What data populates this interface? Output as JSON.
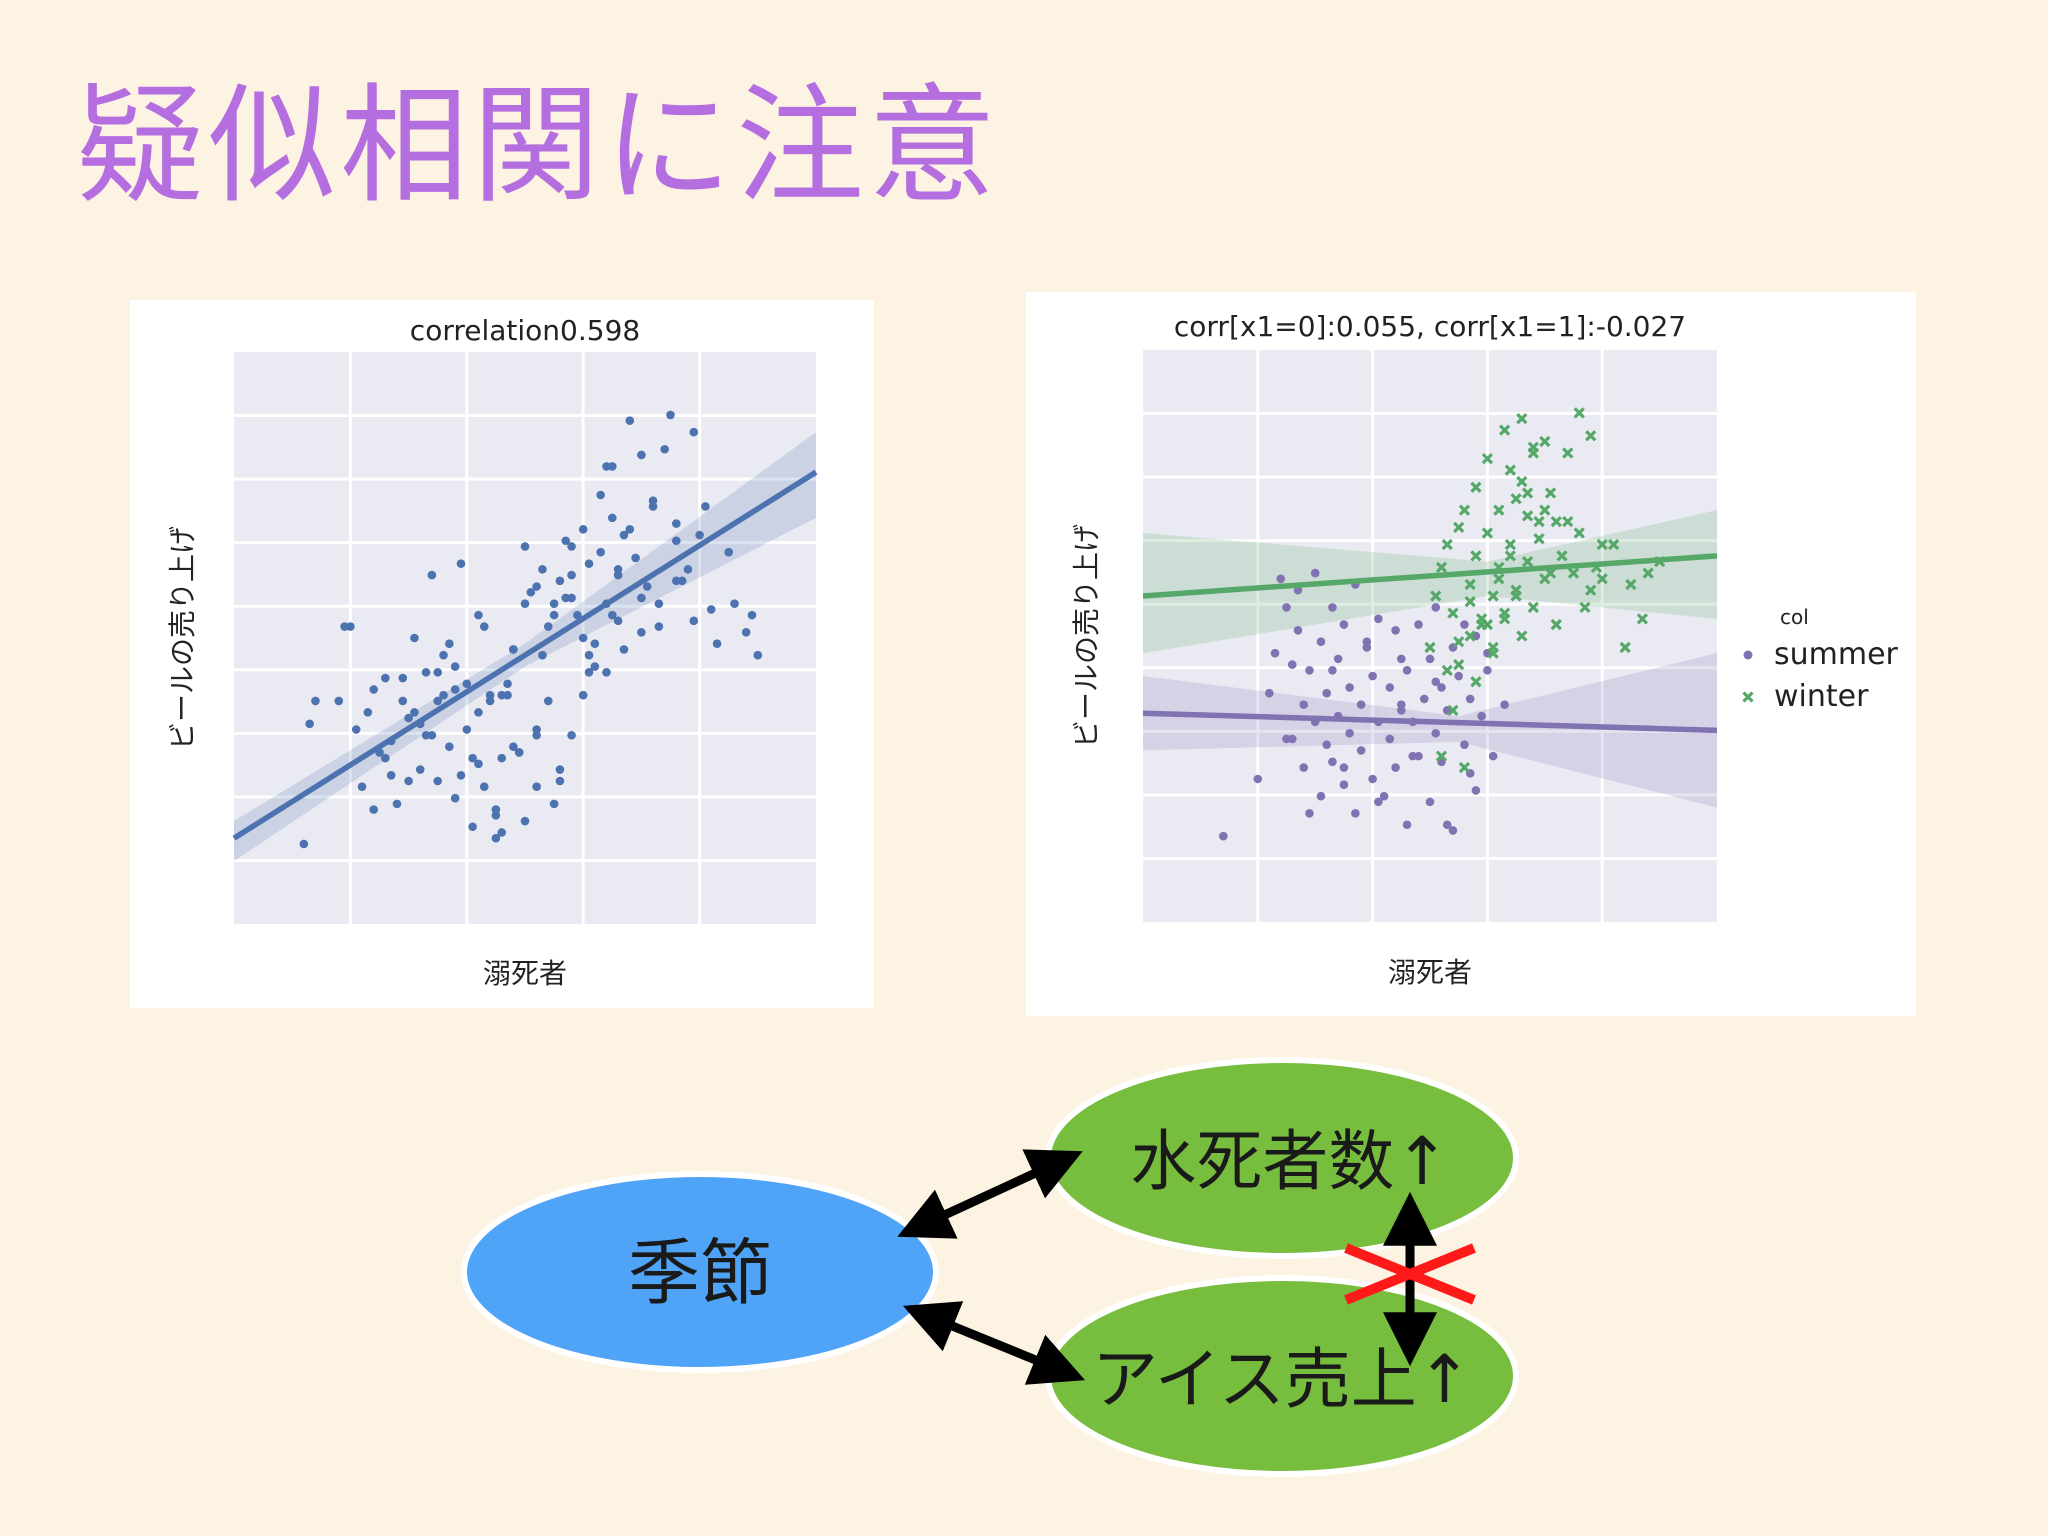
{
  "slide": {
    "title": "疑似相関に注意"
  },
  "colors": {
    "title": "#b56ee0",
    "background": "#fdf3e3",
    "plot_bg": "#eaeaf2",
    "series_blue": "#4c72b0",
    "series_summer": "#8172b2",
    "series_winter": "#55a868",
    "node_season": "#4fa4f7",
    "node_effect": "#77bd3e",
    "cross": "#ff1a1a"
  },
  "chart_data": [
    {
      "type": "scatter",
      "title": "correlation0.598",
      "xlabel": "溺死者",
      "ylabel": "ビールの売り上げ",
      "xlim": [
        0,
        100
      ],
      "ylim": [
        0,
        100
      ],
      "grid": true,
      "regression_line": {
        "x": [
          0,
          100
        ],
        "y": [
          15,
          79
        ]
      },
      "confidence_band": {
        "x": [
          0,
          50,
          100
        ],
        "upper": [
          18,
          49,
          86
        ],
        "lower": [
          11,
          45,
          71
        ]
      },
      "points": {
        "x": [
          12,
          13,
          14,
          18,
          19,
          20,
          23,
          24,
          25,
          26,
          27,
          28,
          29,
          30,
          30,
          31,
          32,
          32,
          33,
          34,
          35,
          35,
          36,
          36,
          37,
          38,
          38,
          39,
          40,
          40,
          41,
          42,
          42,
          43,
          44,
          45,
          45,
          46,
          46,
          47,
          48,
          48,
          49,
          50,
          50,
          51,
          52,
          52,
          53,
          54,
          55,
          55,
          56,
          56,
          57,
          58,
          58,
          59,
          60,
          60,
          61,
          61,
          62,
          63,
          63,
          64,
          64,
          65,
          65,
          66,
          66,
          67,
          68,
          68,
          69,
          70,
          70,
          71,
          72,
          73,
          74,
          75,
          76,
          76,
          77,
          78,
          79,
          80,
          81,
          82,
          83,
          85,
          86,
          88,
          89,
          90,
          22,
          26,
          29,
          33,
          37,
          41,
          44,
          47,
          49,
          52,
          55,
          58,
          61,
          64,
          67,
          70,
          73,
          76,
          79,
          45,
          52,
          56,
          60,
          62,
          57,
          53,
          48,
          43,
          39,
          35,
          31,
          27,
          24,
          21,
          42,
          50,
          58,
          66,
          72,
          46,
          54,
          38,
          34,
          65
        ],
        "y": [
          14,
          35,
          39,
          39,
          52,
          52,
          37,
          41,
          30,
          43,
          32,
          21,
          43,
          36,
          25,
          50,
          27,
          35,
          44,
          33,
          39,
          25,
          47,
          40,
          31,
          22,
          41,
          26,
          42,
          34,
          17,
          28,
          37,
          24,
          39,
          19,
          15,
          29,
          16,
          42,
          31,
          48,
          30,
          18,
          66,
          58,
          34,
          59,
          47,
          39,
          21,
          56,
          27,
          60,
          67,
          33,
          61,
          54,
          50,
          69,
          47,
          63,
          49,
          75,
          65,
          44,
          56,
          54,
          80,
          53,
          62,
          68,
          69,
          88,
          64,
          51,
          82,
          59,
          74,
          52,
          83,
          89,
          67,
          60,
          60,
          62,
          86,
          68,
          73,
          55,
          49,
          65,
          56,
          51,
          54,
          47,
          24,
          29,
          39,
          33,
          49,
          29,
          40,
          40,
          30,
          33,
          54,
          66,
          44,
          80,
          48,
          57,
          56,
          70,
          53,
          20,
          24,
          25,
          40,
          45,
          57,
          62,
          48,
          52,
          63,
          44,
          37,
          26,
          20,
          34,
          54,
          56,
          57,
          61,
          73,
          40,
          52,
          45,
          61,
          71
        ]
      }
    },
    {
      "type": "scatter",
      "title": "corr[x1=0]:0.055,  corr[x1=1]:-0.027",
      "xlabel": "溺死者",
      "ylabel": "ビールの売り上げ",
      "xlim": [
        0,
        100
      ],
      "ylim": [
        0,
        100
      ],
      "grid": true,
      "legend": {
        "title": "col",
        "position": "right",
        "entries": [
          "summer",
          "winter"
        ]
      },
      "series": [
        {
          "name": "summer",
          "marker": "circle",
          "regression_line": {
            "x": [
              0,
              100
            ],
            "y": [
              36.5,
              33.5
            ]
          },
          "confidence_band": {
            "x": [
              0,
              55,
              100
            ],
            "upper": [
              43,
              36,
              47
            ],
            "lower": [
              30,
              31.5,
              20
            ]
          },
          "points": {
            "x": [
              14,
              20,
              22,
              23,
              24,
              25,
              26,
              26,
              27,
              28,
              28,
              29,
              30,
              30,
              31,
              31,
              32,
              32,
              33,
              33,
              34,
              34,
              35,
              35,
              36,
              36,
              37,
              37,
              38,
              38,
              39,
              40,
              40,
              41,
              41,
              42,
              43,
              43,
              44,
              44,
              45,
              45,
              46,
              46,
              47,
              48,
              48,
              49,
              50,
              50,
              51,
              51,
              52,
              52,
              53,
              54,
              54,
              55,
              56,
              57,
              57,
              58,
              59,
              60,
              25,
              29,
              35,
              41,
              47,
              53,
              58,
              61,
              63,
              27,
              33,
              39,
              45,
              51,
              56,
              60
            ],
            "y": [
              15,
              25,
              40,
              47,
              60,
              55,
              45,
              32,
              51,
              38,
              27,
              44,
              35,
              61,
              49,
              22,
              40,
              31,
              55,
              28,
              36,
              46,
              24,
              52,
              33,
              41,
              59,
              19,
              38,
              30,
              48,
              25,
              43,
              35,
              53,
              22,
              41,
              32,
              51,
              27,
              38,
              46,
              17,
              44,
              35,
              29,
              52,
              39,
              21,
              46,
              33,
              55,
              41,
              28,
              37,
              48,
              16,
              43,
              31,
              39,
              26,
              50,
              36,
              44,
              32,
              19,
              27,
              21,
              29,
              17,
              23,
              29,
              38,
              58,
              44,
              49,
              37,
              42,
              52,
              47
            ]
          }
        },
        {
          "name": "winter",
          "marker": "x",
          "regression_line": {
            "x": [
              0,
              100
            ],
            "y": [
              57,
              64
            ]
          },
          "confidence_band": {
            "x": [
              0,
              60,
              100
            ],
            "upper": [
              68,
              63,
              72
            ],
            "lower": [
              47,
              57,
              53
            ]
          },
          "points": {
            "x": [
              50,
              51,
              52,
              53,
              54,
              55,
              55,
              56,
              57,
              57,
              58,
              58,
              59,
              60,
              60,
              61,
              61,
              62,
              62,
              63,
              63,
              64,
              64,
              65,
              65,
              66,
              66,
              67,
              67,
              68,
              68,
              69,
              70,
              70,
              71,
              72,
              73,
              74,
              75,
              76,
              77,
              78,
              79,
              80,
              82,
              84,
              85,
              87,
              88,
              90,
              52,
              54,
              56,
              58,
              60,
              62,
              64,
              66,
              68,
              70,
              72,
              74,
              76,
              78,
              80,
              53,
              55,
              57,
              59,
              61,
              63,
              65,
              67,
              69,
              71
            ],
            "y": [
              48,
              57,
              62,
              66,
              54,
              69,
              45,
              72,
              59,
              50,
              64,
              76,
              53,
              68,
              81,
              57,
              47,
              72,
              62,
              86,
              54,
              79,
              66,
              58,
              74,
              50,
              88,
              63,
              71,
              82,
              55,
              67,
              84,
              60,
              75,
              52,
              64,
              70,
              61,
              68,
              55,
              58,
              62,
              60,
              66,
              48,
              59,
              53,
              61,
              63,
              29,
              37,
              27,
              42,
              52,
              60,
              64,
              77,
              83,
              72,
              70,
              82,
              89,
              85,
              66,
              44,
              49,
              56,
              52,
              48,
              53,
              57,
              75,
              70,
              61
            ]
          }
        }
      ]
    }
  ],
  "diagram": {
    "nodes": {
      "season": "季節",
      "drowning": "水死者数↑",
      "ice": "アイス売上↑"
    }
  }
}
